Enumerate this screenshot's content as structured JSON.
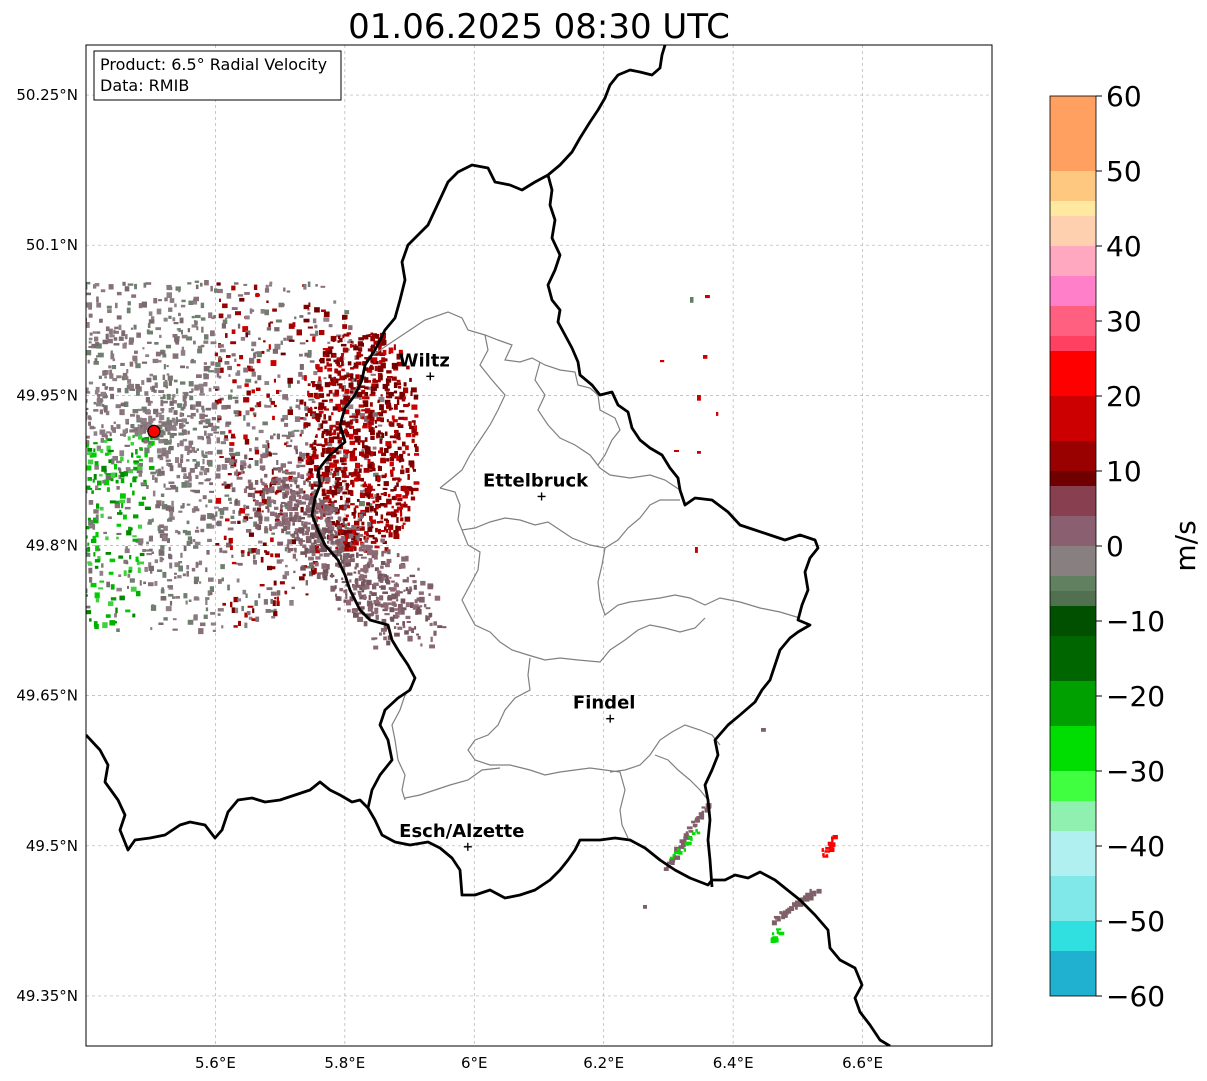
{
  "title": "01.06.2025 08:30 UTC",
  "info_box": {
    "product_line": "Product: 6.5° Radial Velocity",
    "data_line": "Data: RMIB"
  },
  "colorbar": {
    "label": "m/s",
    "min": -60,
    "max": 60,
    "ticks": [
      "60",
      "50",
      "40",
      "30",
      "20",
      "10",
      "0",
      "−10",
      "−20",
      "−30",
      "−40",
      "−50",
      "−60"
    ],
    "stops": [
      {
        "v": 60,
        "c": "#ffa060"
      },
      {
        "v": 50,
        "c": "#ffc880"
      },
      {
        "v": 46,
        "c": "#ffe8a0"
      },
      {
        "v": 44,
        "c": "#ffd0b0"
      },
      {
        "v": 40,
        "c": "#ffa8c0"
      },
      {
        "v": 36,
        "c": "#ff80c8"
      },
      {
        "v": 32,
        "c": "#ff6080"
      },
      {
        "v": 28,
        "c": "#ff4060"
      },
      {
        "v": 26,
        "c": "#ff0000"
      },
      {
        "v": 20,
        "c": "#cc0000"
      },
      {
        "v": 14,
        "c": "#990000"
      },
      {
        "v": 10,
        "c": "#700000"
      },
      {
        "v": 8,
        "c": "#884050"
      },
      {
        "v": 4,
        "c": "#8a6070"
      },
      {
        "v": 0,
        "c": "#888080"
      },
      {
        "v": -4,
        "c": "#608060"
      },
      {
        "v": -6,
        "c": "#507050"
      },
      {
        "v": -8,
        "c": "#005000"
      },
      {
        "v": -12,
        "c": "#006600"
      },
      {
        "v": -18,
        "c": "#00a000"
      },
      {
        "v": -24,
        "c": "#00dd00"
      },
      {
        "v": -30,
        "c": "#40ff40"
      },
      {
        "v": -34,
        "c": "#90f0b0"
      },
      {
        "v": -38,
        "c": "#b0f0f0"
      },
      {
        "v": -44,
        "c": "#80e8e8"
      },
      {
        "v": -50,
        "c": "#30e0e0"
      },
      {
        "v": -54,
        "c": "#20b0d0"
      },
      {
        "v": -60,
        "c": "#2080c0"
      }
    ]
  },
  "axes": {
    "lon_range": [
      5.4,
      6.8
    ],
    "lat_range": [
      49.3,
      50.3
    ],
    "lon_ticks": [
      "5.6°E",
      "5.8°E",
      "6°E",
      "6.2°E",
      "6.4°E",
      "6.6°E"
    ],
    "lon_values": [
      5.6,
      5.8,
      6.0,
      6.2,
      6.4,
      6.6
    ],
    "lat_ticks": [
      "50.25°N",
      "50.1°N",
      "49.95°N",
      "49.8°N",
      "49.65°N",
      "49.5°N",
      "49.35°N"
    ],
    "lat_values": [
      50.25,
      50.1,
      49.95,
      49.8,
      49.65,
      49.5,
      49.35
    ],
    "grid": true
  },
  "cities": [
    {
      "name": "Wiltz",
      "lon": 5.932,
      "lat": 49.969
    },
    {
      "name": "Ettelbruck",
      "lon": 6.104,
      "lat": 49.849
    },
    {
      "name": "Findel",
      "lon": 6.21,
      "lat": 49.627
    },
    {
      "name": "Esch/Alzette",
      "lon": 5.99,
      "lat": 49.499
    }
  ],
  "radar_site": {
    "lon": 5.505,
    "lat": 49.914,
    "color": "#ff0000"
  },
  "colors": {
    "inbound_green": "#00a000",
    "outbound_red": "#990000",
    "near_zero": "#887078"
  }
}
